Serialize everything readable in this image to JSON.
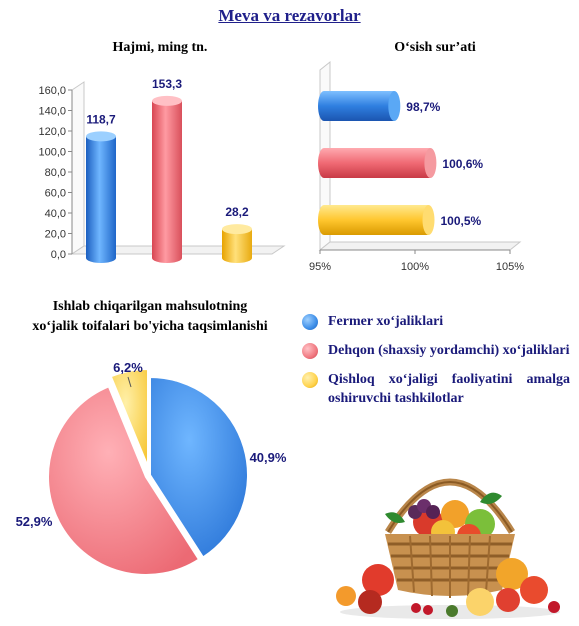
{
  "title": "Meva va rezavorlar",
  "volume_chart": {
    "title": "Hajmi, ming tn."
  },
  "growth_chart": {
    "title": "O‘sish sur’ati"
  },
  "pie_chart": {
    "title_line1": "Ishlab chiqarilgan mahsulotning",
    "title_line2": "xo‘jalik toifalari bo'yicha taqsimlanishi"
  },
  "legend": [
    {
      "label": "Fermer xo‘jaliklari",
      "color": "#3d8ee8"
    },
    {
      "label": "Dehqon (shaxsiy yordamchi) xo‘jaliklari",
      "color": "#f07880"
    },
    {
      "label": "Qishloq xo‘jaligi faoliyatini amalga oshiruvchi tashkilotlar",
      "color": "#ffd34d"
    }
  ],
  "chart_data": [
    {
      "type": "bar",
      "title": "Hajmi, ming tn.",
      "categories": [
        "Fermer xo‘jaliklari",
        "Dehqon (shaxsiy yordamchi) xo‘jaliklari",
        "Qishloq xo‘jaligi faoliyatini amalga oshiruvchi tashkilotlar"
      ],
      "values": [
        118.7,
        153.3,
        28.2
      ],
      "value_labels": [
        "118,7",
        "153,3",
        "28,2"
      ],
      "colors": [
        "#3d8ee8",
        "#f07880",
        "#ffcc44"
      ],
      "ylim": [
        0,
        160
      ],
      "yticks": [
        "0,0",
        "20,0",
        "40,0",
        "60,0",
        "80,0",
        "100,0",
        "120,0",
        "140,0",
        "160,0"
      ],
      "grid": false
    },
    {
      "type": "bar",
      "orientation": "horizontal",
      "title": "O‘sish sur’ati",
      "categories": [
        "Fermer xo‘jaliklari",
        "Dehqon (shaxsiy yordamchi) xo‘jaliklari",
        "Qishloq xo‘jaligi faoliyatini amalga oshiruvchi tashkilotlar"
      ],
      "values": [
        98.7,
        100.6,
        100.5
      ],
      "value_labels": [
        "98,7%",
        "100,6%",
        "100,5%"
      ],
      "colors": [
        "#3d8ee8",
        "#f07880",
        "#ffcc44"
      ],
      "xlim": [
        95,
        105
      ],
      "xticks": [
        "95%",
        "100%",
        "105%"
      ],
      "grid": false
    },
    {
      "type": "pie",
      "title": "Ishlab chiqarilgan mahsulotning xo‘jalik toifalari bo'yicha taqsimlanishi",
      "labels": [
        "Fermer xo‘jaliklari",
        "Dehqon (shaxsiy yordamchi) xo‘jaliklari",
        "Qishloq xo‘jaligi faoliyatini amalga oshiruvchi tashkilotlar"
      ],
      "values": [
        40.9,
        52.9,
        6.2
      ],
      "value_labels": [
        "40,9%",
        "52,9%",
        "6,2%"
      ],
      "colors": [
        "#3d8ee8",
        "#f07880",
        "#ffd34d"
      ],
      "legend": "right"
    }
  ]
}
